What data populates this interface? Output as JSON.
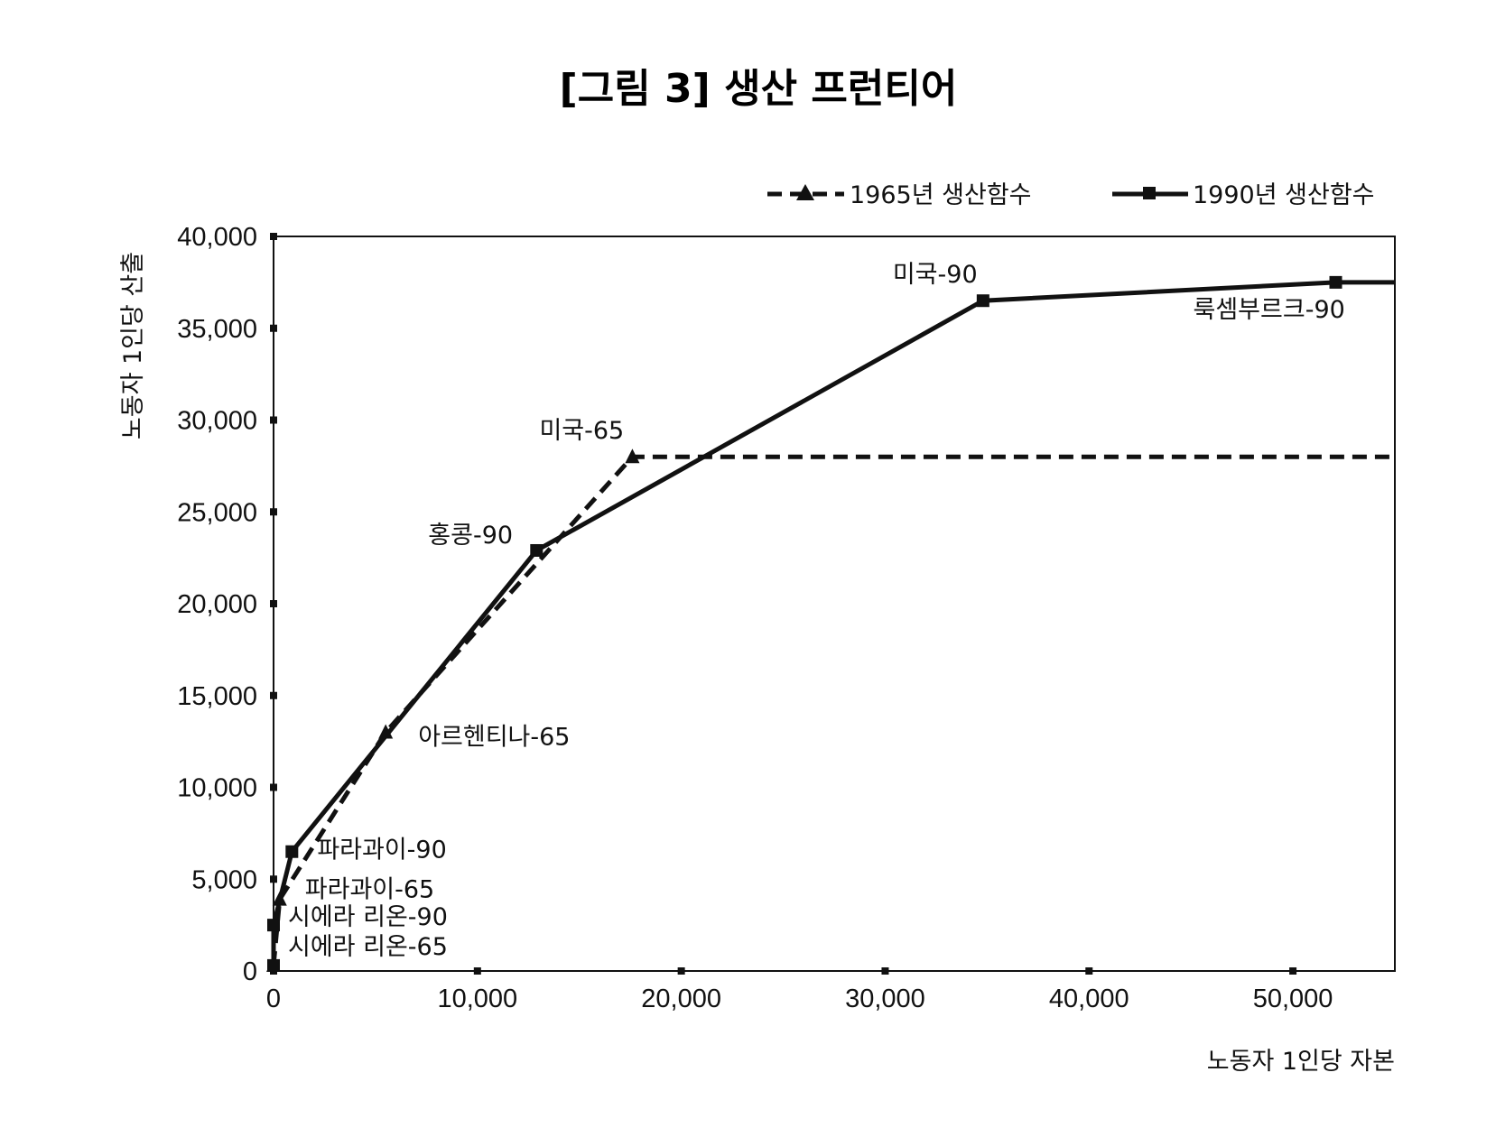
{
  "chart_data": {
    "type": "line",
    "title": "[그림 3] 생산 프런티어",
    "xlabel": "노동자 1인당 자본",
    "ylabel": "노동자 1인당 산출",
    "xlim": [
      0,
      55000
    ],
    "ylim": [
      0,
      40000
    ],
    "xticks": [
      0,
      10000,
      20000,
      30000,
      40000,
      50000
    ],
    "xtick_labels": [
      "0",
      "10,000",
      "20,000",
      "30,000",
      "40,000",
      "50,000"
    ],
    "yticks": [
      0,
      5000,
      10000,
      15000,
      20000,
      25000,
      30000,
      35000,
      40000
    ],
    "ytick_labels": [
      "0",
      "5,000",
      "10,000",
      "15,000",
      "20,000",
      "25,000",
      "30,000",
      "35,000",
      "40,000"
    ],
    "legend_position": "top-right",
    "grid": false,
    "series": [
      {
        "name": "1965년 생산함수",
        "style": "dashed",
        "marker": "triangle",
        "color": "#111111",
        "points": [
          {
            "x": 0,
            "y": 300
          },
          {
            "x": 300,
            "y": 3900
          },
          {
            "x": 5500,
            "y": 13000
          },
          {
            "x": 17600,
            "y": 28000
          },
          {
            "x": 55000,
            "y": 28000
          }
        ]
      },
      {
        "name": "1990년 생산함수",
        "style": "solid",
        "marker": "square",
        "color": "#111111",
        "points": [
          {
            "x": 0,
            "y": 300
          },
          {
            "x": 0,
            "y": 2500
          },
          {
            "x": 900,
            "y": 6500
          },
          {
            "x": 12900,
            "y": 22900
          },
          {
            "x": 34800,
            "y": 36500
          },
          {
            "x": 52100,
            "y": 37500
          },
          {
            "x": 55000,
            "y": 37500
          }
        ]
      }
    ],
    "annotations": [
      {
        "text": "미국-90",
        "x": 34800,
        "y": 36500
      },
      {
        "text": "룩셈부르크-90",
        "x": 52100,
        "y": 37500
      },
      {
        "text": "미국-65",
        "x": 17600,
        "y": 28000
      },
      {
        "text": "홍콩-90",
        "x": 12900,
        "y": 22900
      },
      {
        "text": "아르헨티나-65",
        "x": 5500,
        "y": 13000
      },
      {
        "text": "파라과이-90",
        "x": 900,
        "y": 6500
      },
      {
        "text": "파라과이-65",
        "x": 300,
        "y": 3900
      },
      {
        "text": "시에라 리온-90",
        "x": 0,
        "y": 2500
      },
      {
        "text": "시에라 리온-65",
        "x": 0,
        "y": 300
      }
    ]
  }
}
